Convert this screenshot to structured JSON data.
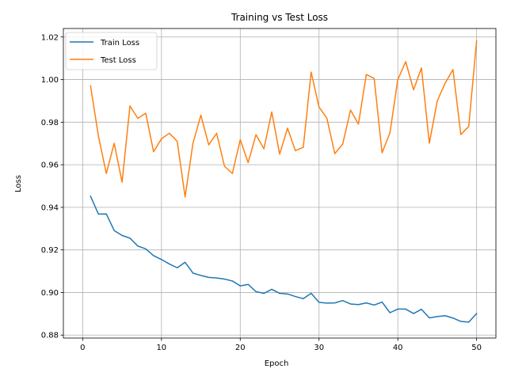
{
  "chart_data": {
    "type": "line",
    "title": "Training vs Test Loss",
    "xlabel": "Epoch",
    "ylabel": "Loss",
    "xlim": [
      -2.45,
      52.45
    ],
    "ylim": [
      0.8786,
      1.024
    ],
    "xticks": [
      0,
      10,
      20,
      30,
      40,
      50
    ],
    "xtick_labels": [
      "0",
      "10",
      "20",
      "30",
      "40",
      "50"
    ],
    "yticks": [
      0.88,
      0.9,
      0.92,
      0.94,
      0.96,
      0.98,
      1.0,
      1.02
    ],
    "ytick_labels": [
      "0.88",
      "0.90",
      "0.92",
      "0.94",
      "0.96",
      "0.98",
      "1.00",
      "1.02"
    ],
    "grid": true,
    "legend_position": "upper-left",
    "x": [
      1,
      2,
      3,
      4,
      5,
      6,
      7,
      8,
      9,
      10,
      11,
      12,
      13,
      14,
      15,
      16,
      17,
      18,
      19,
      20,
      21,
      22,
      23,
      24,
      25,
      26,
      27,
      28,
      29,
      30,
      31,
      32,
      33,
      34,
      35,
      36,
      37,
      38,
      39,
      40,
      41,
      42,
      43,
      44,
      45,
      46,
      47,
      48,
      49,
      50
    ],
    "series": [
      {
        "name": "Train Loss",
        "color": "#1f77b4",
        "values": [
          0.9452,
          0.9368,
          0.9369,
          0.9291,
          0.9268,
          0.9255,
          0.9218,
          0.9205,
          0.9173,
          0.9155,
          0.9134,
          0.9116,
          0.9142,
          0.9091,
          0.908,
          0.9071,
          0.9068,
          0.9063,
          0.9054,
          0.9031,
          0.9038,
          0.9004,
          0.8996,
          0.9015,
          0.8996,
          0.8993,
          0.8981,
          0.8971,
          0.8996,
          0.8954,
          0.895,
          0.8951,
          0.8962,
          0.8946,
          0.8943,
          0.8951,
          0.8941,
          0.8955,
          0.8905,
          0.8922,
          0.8922,
          0.8901,
          0.8921,
          0.8881,
          0.8887,
          0.8891,
          0.888,
          0.8864,
          0.8861,
          0.8901
        ]
      },
      {
        "name": "Test Loss",
        "color": "#ff7f0e",
        "values": [
          0.9971,
          0.9734,
          0.9559,
          0.9701,
          0.9518,
          0.9876,
          0.9818,
          0.9842,
          0.9661,
          0.9722,
          0.9748,
          0.971,
          0.9449,
          0.9701,
          0.9833,
          0.9693,
          0.9748,
          0.9593,
          0.9559,
          0.9718,
          0.961,
          0.9741,
          0.9675,
          0.9848,
          0.965,
          0.9772,
          0.9666,
          0.9682,
          1.0035,
          0.9871,
          0.9818,
          0.9652,
          0.9697,
          0.9857,
          0.9791,
          1.0024,
          1.0005,
          0.9656,
          0.975,
          1.0,
          1.0084,
          0.9952,
          1.0055,
          0.9701,
          0.9899,
          0.9983,
          1.0047,
          0.9742,
          0.978,
          1.0182
        ]
      }
    ]
  }
}
